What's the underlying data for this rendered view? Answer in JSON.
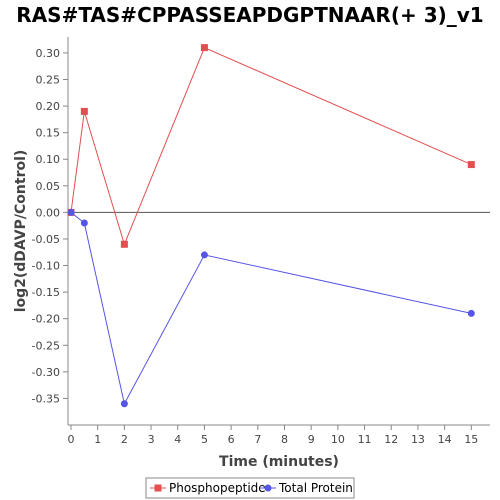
{
  "chart_data": {
    "type": "line",
    "title": "RAS#TAS#CPPASSEAPDGPTNAAR(+ 3)_v1",
    "xlabel": "Time (minutes)",
    "ylabel": "log2(dDAVP/Control)",
    "xlim": [
      0,
      15.7
    ],
    "ylim": [
      -0.4,
      0.33
    ],
    "x_ticks": [
      0,
      1,
      2,
      3,
      4,
      5,
      6,
      7,
      8,
      9,
      10,
      11,
      12,
      13,
      14,
      15
    ],
    "y_ticks": [
      0.3,
      0.25,
      0.2,
      0.15,
      0.1,
      0.05,
      0.0,
      -0.05,
      -0.1,
      -0.15,
      -0.2,
      -0.25,
      -0.3,
      -0.35
    ],
    "y_tick_labels": [
      "0.30",
      "0.25",
      "0.20",
      "0.15",
      "0.10",
      "0.05",
      "0.00",
      "-0.05",
      "-0.10",
      "-0.15",
      "-0.20",
      "-0.25",
      "-0.30",
      "-0.35"
    ],
    "zero_line": true,
    "grid": false,
    "legend_position": "bottom",
    "series": [
      {
        "name": "Phosphopeptide",
        "color": "#e05050",
        "marker": "square",
        "x": [
          0,
          0.5,
          2,
          5,
          15
        ],
        "y": [
          0.0,
          0.19,
          -0.06,
          0.31,
          0.09
        ]
      },
      {
        "name": "Total Protein",
        "color": "#5555e6",
        "marker": "circle",
        "x": [
          0,
          0.5,
          2,
          5,
          15
        ],
        "y": [
          0.0,
          -0.02,
          -0.36,
          -0.08,
          -0.19
        ]
      }
    ]
  }
}
